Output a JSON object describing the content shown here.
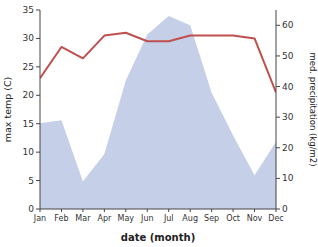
{
  "chart_data": {
    "type": "line",
    "xlabel": "date (month)",
    "ylabel": "max temp (C)",
    "y2label": "med. precipitation (kg/m2)",
    "categories": [
      "Jan",
      "Feb",
      "Mar",
      "Apr",
      "May",
      "Jun",
      "Jul",
      "Aug",
      "Sep",
      "Oct",
      "Nov",
      "Dec"
    ],
    "series": [
      {
        "type": "area",
        "axis": "y2",
        "color": "#c5cfe8",
        "values": [
          28,
          29,
          9,
          18,
          42,
          57,
          63,
          60,
          38,
          24,
          11,
          22
        ]
      },
      {
        "type": "line",
        "color": "#c0504d",
        "values": [
          23,
          28.5,
          26.5,
          30.5,
          31,
          29.5,
          29.5,
          30.5,
          30.5,
          30.5,
          30,
          20.5
        ]
      }
    ],
    "ylim": [
      0,
      35
    ],
    "yticks": [
      0,
      5,
      10,
      15,
      20,
      25,
      30,
      35
    ],
    "y2lim": [
      0,
      65
    ],
    "y2ticks": [
      0,
      10,
      20,
      30,
      40,
      50,
      60
    ],
    "grid": false
  }
}
